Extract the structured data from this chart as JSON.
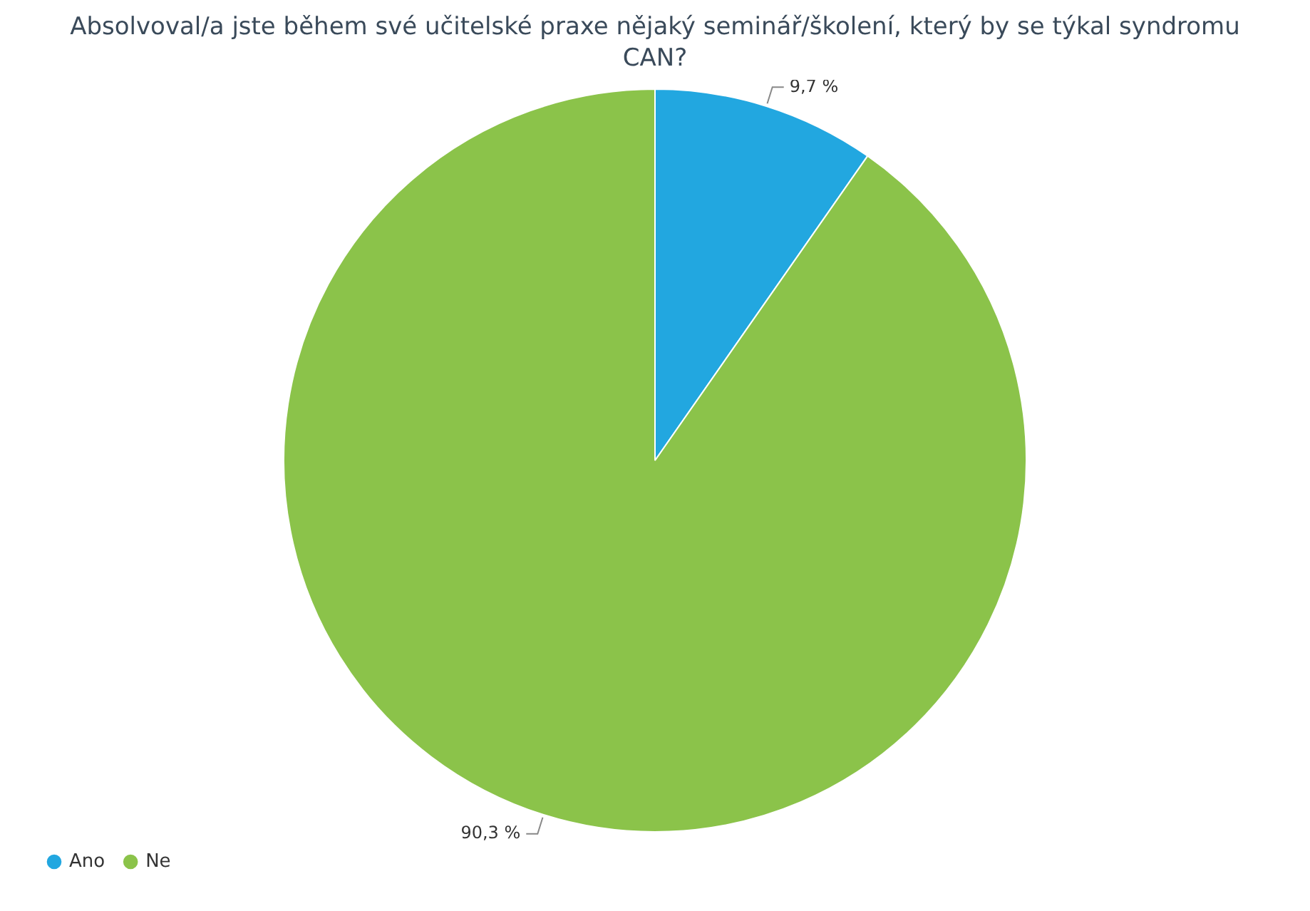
{
  "chart_data": {
    "type": "pie",
    "title": "Absolvoval/a jste během své učitelské praxe nějaký seminář/školení, který by se týkal syndromu CAN?",
    "categories": [
      "Ano",
      "Ne"
    ],
    "values": [
      9.7,
      90.3
    ],
    "colors": [
      "#22a7e0",
      "#8bc34a"
    ],
    "value_labels": [
      "9,7 %",
      "90,3 %"
    ],
    "legend": "bottom left"
  }
}
